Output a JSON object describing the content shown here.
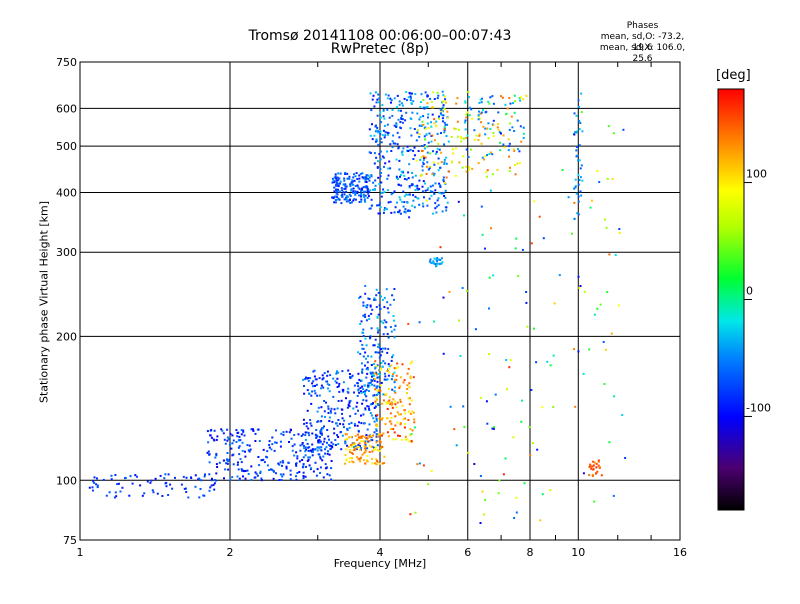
{
  "chart_data": {
    "type": "scatter",
    "title": "Tromsø 20141108 00:06:00–00:07:43",
    "subtitle": "RwPretec (8p)",
    "xlabel": "Frequency [MHz]",
    "ylabel": "Stationary phase Virtual Height [km]",
    "x_scale": "log",
    "y_scale": "log",
    "xlim": [
      1,
      16
    ],
    "ylim": [
      75,
      750
    ],
    "x_ticks": [
      "1",
      "2",
      "4",
      "6",
      "8",
      "10",
      "16"
    ],
    "y_ticks": [
      "75",
      "100",
      "200",
      "300",
      "400",
      "500",
      "600",
      "750"
    ],
    "grid": true,
    "stats": {
      "title": "Phases",
      "o_line": "mean, sd,O: -73.2, 19.6",
      "x_line": "mean, sd,X: 106.0, 25.6"
    },
    "colorbar": {
      "label": "[deg]",
      "range": [
        -180,
        180
      ],
      "ticks": [
        "100",
        "0",
        "-100"
      ],
      "tick_values": [
        100,
        0,
        -100
      ],
      "colormap": "rainbow"
    },
    "clusters": [
      {
        "x": [
          1.0,
          1.9
        ],
        "y": [
          92,
          103
        ],
        "phase": [
          -100,
          -60
        ],
        "n": 80
      },
      {
        "x": [
          1.8,
          3.2
        ],
        "y": [
          100,
          128
        ],
        "phase": [
          -110,
          -50
        ],
        "n": 280
      },
      {
        "x": [
          2.8,
          4.0
        ],
        "y": [
          115,
          170
        ],
        "phase": [
          -110,
          -40
        ],
        "n": 300
      },
      {
        "x": [
          3.6,
          4.3
        ],
        "y": [
          150,
          255
        ],
        "phase": [
          -100,
          -20
        ],
        "n": 180
      },
      {
        "x": [
          3.4,
          4.1
        ],
        "y": [
          108,
          125
        ],
        "phase": [
          90,
          150
        ],
        "n": 110
      },
      {
        "x": [
          3.9,
          4.7
        ],
        "y": [
          120,
          180
        ],
        "phase": [
          80,
          170
        ],
        "n": 140
      },
      {
        "x": [
          3.2,
          3.8
        ],
        "y": [
          380,
          440
        ],
        "phase": [
          -100,
          -40
        ],
        "n": 170
      },
      {
        "x": [
          3.8,
          5.5
        ],
        "y": [
          360,
          650
        ],
        "phase": [
          -100,
          -20
        ],
        "n": 420
      },
      {
        "x": [
          4.8,
          7.8
        ],
        "y": [
          430,
          650
        ],
        "phase": [
          40,
          150
        ],
        "n": 130
      },
      {
        "x": [
          5.8,
          7.8
        ],
        "y": [
          470,
          640
        ],
        "phase": [
          -80,
          10
        ],
        "n": 60
      },
      {
        "x": [
          5.0,
          5.4
        ],
        "y": [
          280,
          292
        ],
        "phase": [
          -60,
          -20
        ],
        "n": 25
      },
      {
        "x": [
          9.8,
          10.2
        ],
        "y": [
          330,
          650
        ],
        "phase": [
          -70,
          -20
        ],
        "n": 40
      },
      {
        "x": [
          10.5,
          11.2
        ],
        "y": [
          102,
          110
        ],
        "phase": [
          130,
          170
        ],
        "n": 25
      },
      {
        "x": [
          4.5,
          12.5
        ],
        "y": [
          80,
          650
        ],
        "phase": [
          -120,
          170
        ],
        "n": 160
      }
    ]
  }
}
